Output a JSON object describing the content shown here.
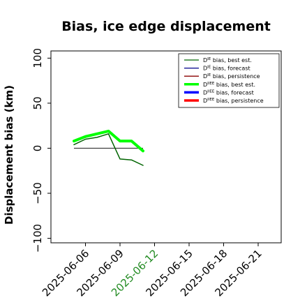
{
  "chart_data": {
    "type": "line",
    "title": "Bias, ice edge displacement",
    "ylabel": "Displacement bias (km)",
    "xlabel": "",
    "ylim": [
      -105,
      108
    ],
    "xlim": [
      "2025-06-03",
      "2025-06-23"
    ],
    "yticks": [
      -100,
      -50,
      0,
      50,
      100
    ],
    "xticks": [
      "2025-06-06",
      "2025-06-09",
      "2025-06-12",
      "2025-06-15",
      "2025-06-18",
      "2025-06-21"
    ],
    "highlight_xtick": "2025-06-12",
    "highlight_color": "#228b22",
    "grid": false,
    "legend_position": "top-right",
    "series": [
      {
        "name": "D bias, best est.",
        "sup": "IE",
        "color": "#006400",
        "width": 1.5,
        "x": [
          "2025-06-05",
          "2025-06-06",
          "2025-06-07",
          "2025-06-08",
          "2025-06-09",
          "2025-06-10",
          "2025-06-11"
        ],
        "y": [
          4,
          10,
          12,
          16,
          -12,
          -13,
          -19
        ]
      },
      {
        "name": "D bias, forecast",
        "sup": "IE",
        "color": "#00008b",
        "width": 1.5,
        "x": [],
        "y": []
      },
      {
        "name": "D bias, persistence",
        "sup": "IE",
        "color": "#8b0000",
        "width": 1.5,
        "x": [],
        "y": []
      },
      {
        "name": "D bias, best est.",
        "sup": "IIEE",
        "color": "#00ff00",
        "width": 4,
        "x": [
          "2025-06-05",
          "2025-06-06",
          "2025-06-07",
          "2025-06-08",
          "2025-06-09",
          "2025-06-10",
          "2025-06-11"
        ],
        "y": [
          8,
          13,
          16,
          19,
          8,
          8,
          -3
        ]
      },
      {
        "name": "D bias, forecast",
        "sup": "IIEE",
        "color": "#0000ff",
        "width": 4,
        "x": [],
        "y": []
      },
      {
        "name": "D bias, persistence",
        "sup": "IIEE",
        "color": "#ff0000",
        "width": 4,
        "x": [],
        "y": []
      }
    ],
    "reference_line": {
      "x": [
        "2025-06-05",
        "2025-06-11"
      ],
      "y": 0,
      "color": "#333333"
    }
  }
}
